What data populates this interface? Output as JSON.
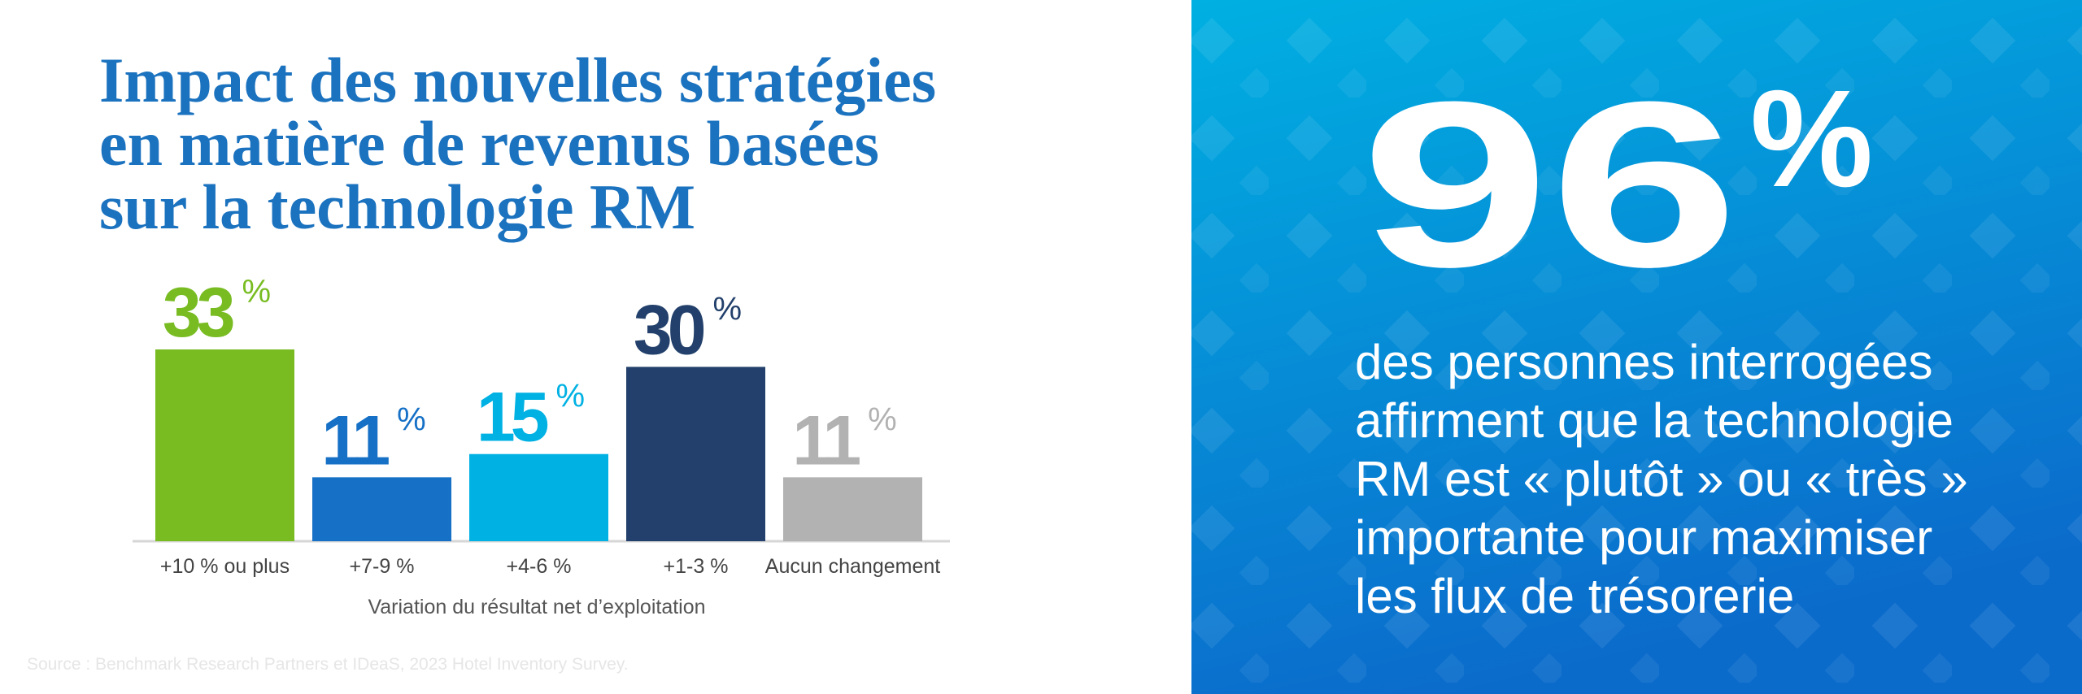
{
  "chart_data": {
    "type": "bar",
    "title_lines": [
      "Impact des nouvelles stratégies",
      "en matière de revenus basées",
      "sur la technologie RM"
    ],
    "categories": [
      "+10 % ou plus",
      "+7-9 %",
      "+4-6 %",
      "+1-3 %",
      "Aucun changement"
    ],
    "values": [
      33,
      11,
      15,
      30,
      11
    ],
    "unit": "%",
    "colors": [
      "#78bc22",
      "#1570c6",
      "#00b1e3",
      "#22406b",
      "#b2b2b2"
    ],
    "x_label": "Variation du résultat net d’exploitation",
    "source": "Source : Benchmark Research Partners et IDeaS, 2023 Hotel Inventory Survey."
  },
  "highlight": {
    "value": "96",
    "unit": "%",
    "text_lines": [
      "des personnes interrogées",
      "affirment que la technologie",
      "RM est « plutôt » ou « très »",
      "importante pour maximiser",
      "les flux de trésorerie"
    ]
  }
}
